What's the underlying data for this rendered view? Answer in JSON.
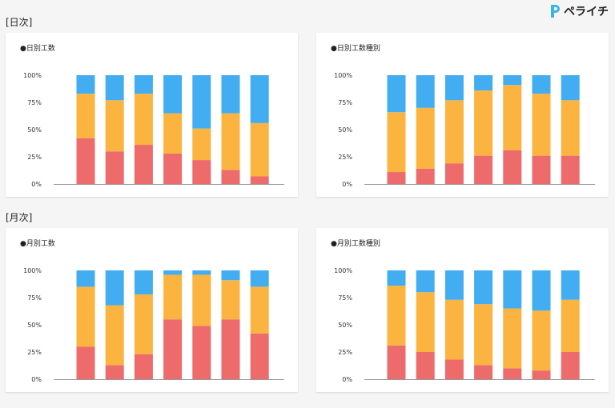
{
  "brand": {
    "name": "ペライチ",
    "icon": "pelaichi-logo-icon",
    "color": "#3cb4e6"
  },
  "sections": [
    {
      "title": "[日次]"
    },
    {
      "title": "[月次]"
    }
  ],
  "colors": {
    "series_red": "#ed6b6b",
    "series_orange": "#fbb440",
    "series_blue": "#42adf0"
  },
  "chart_data": [
    {
      "type": "bar",
      "stacked": true,
      "title": "●日別工数",
      "categories": [
        "",
        "",
        "",
        "",
        "",
        "",
        ""
      ],
      "y_ticks": [
        "0%",
        "25%",
        "50%",
        "75%",
        "100%"
      ],
      "ylim": [
        0,
        100
      ],
      "series": [
        {
          "values": [
            42,
            30,
            36,
            28,
            22,
            13,
            7
          ]
        },
        {
          "values": [
            41,
            47,
            47,
            37,
            29,
            52,
            49
          ]
        },
        {
          "values": [
            17,
            23,
            17,
            35,
            49,
            35,
            44
          ]
        }
      ]
    },
    {
      "type": "bar",
      "stacked": true,
      "title": "●日別工数種別",
      "categories": [
        "",
        "",
        "",
        "",
        "",
        "",
        ""
      ],
      "y_ticks": [
        "0%",
        "25%",
        "50%",
        "75%",
        "100%"
      ],
      "ylim": [
        0,
        100
      ],
      "series": [
        {
          "values": [
            11,
            14,
            19,
            26,
            31,
            26,
            26
          ]
        },
        {
          "values": [
            55,
            56,
            58,
            60,
            60,
            57,
            51
          ]
        },
        {
          "values": [
            34,
            30,
            23,
            14,
            9,
            17,
            23
          ]
        }
      ]
    },
    {
      "type": "bar",
      "stacked": true,
      "title": "●月別工数",
      "categories": [
        "",
        "",
        "",
        "",
        "",
        "",
        ""
      ],
      "y_ticks": [
        "0%",
        "25%",
        "50%",
        "75%",
        "100%"
      ],
      "ylim": [
        0,
        100
      ],
      "series": [
        {
          "values": [
            30,
            13,
            23,
            55,
            49,
            55,
            42
          ]
        },
        {
          "values": [
            55,
            55,
            55,
            41,
            47,
            36,
            43
          ]
        },
        {
          "values": [
            15,
            32,
            22,
            4,
            4,
            9,
            15
          ]
        }
      ]
    },
    {
      "type": "bar",
      "stacked": true,
      "title": "●月別工数種別",
      "categories": [
        "",
        "",
        "",
        "",
        "",
        "",
        ""
      ],
      "y_ticks": [
        "0%",
        "25%",
        "50%",
        "75%",
        "100%"
      ],
      "ylim": [
        0,
        100
      ],
      "series": [
        {
          "values": [
            31,
            25,
            18,
            13,
            10,
            8,
            25
          ]
        },
        {
          "values": [
            55,
            55,
            55,
            56,
            55,
            55,
            48
          ]
        },
        {
          "values": [
            14,
            20,
            27,
            31,
            35,
            37,
            27
          ]
        }
      ]
    }
  ]
}
